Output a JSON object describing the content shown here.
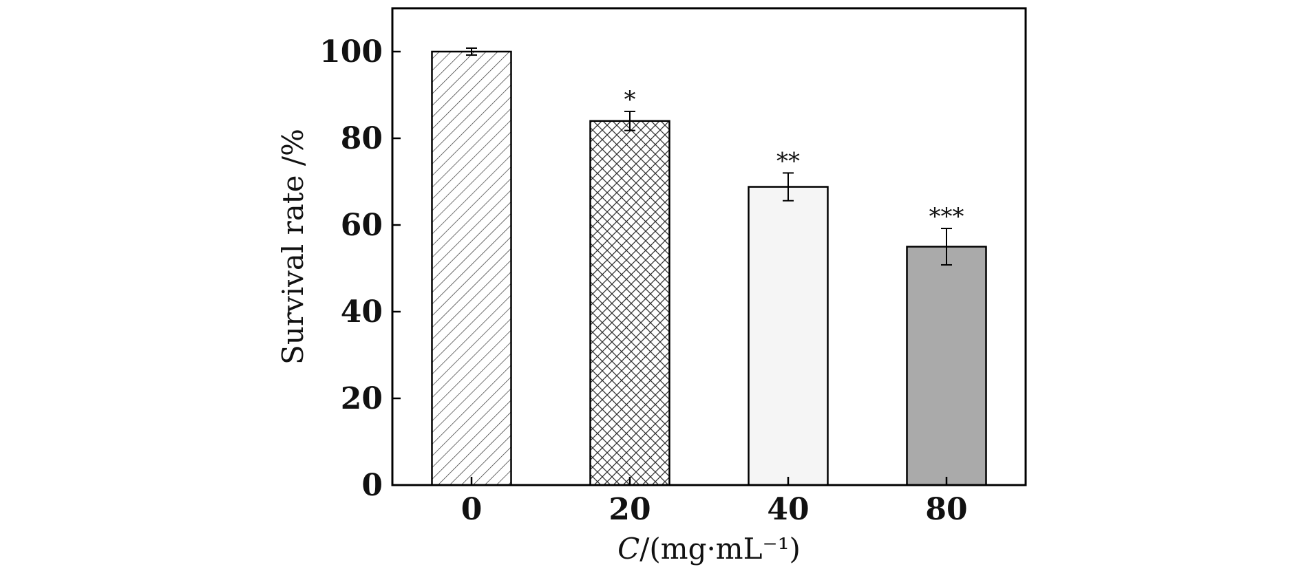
{
  "chart_data": {
    "type": "bar",
    "categories": [
      "0",
      "20",
      "40",
      "80"
    ],
    "values": [
      100,
      84,
      68.8,
      55
    ],
    "errors": [
      0.8,
      2.2,
      3.2,
      4.2
    ],
    "significance": [
      "",
      "*",
      "**",
      "***"
    ],
    "fills": [
      "hatch-diagonal",
      "hatch-cross",
      "#f5f5f5",
      "#aaaaaa"
    ],
    "ylim": [
      0,
      110
    ],
    "yticks": [
      0,
      20,
      40,
      60,
      80,
      100
    ],
    "ylabel": "Survival rate /%",
    "xlabel_italic": "C",
    "xlabel_rest": "/(mg·mL⁻¹)",
    "title": ""
  }
}
